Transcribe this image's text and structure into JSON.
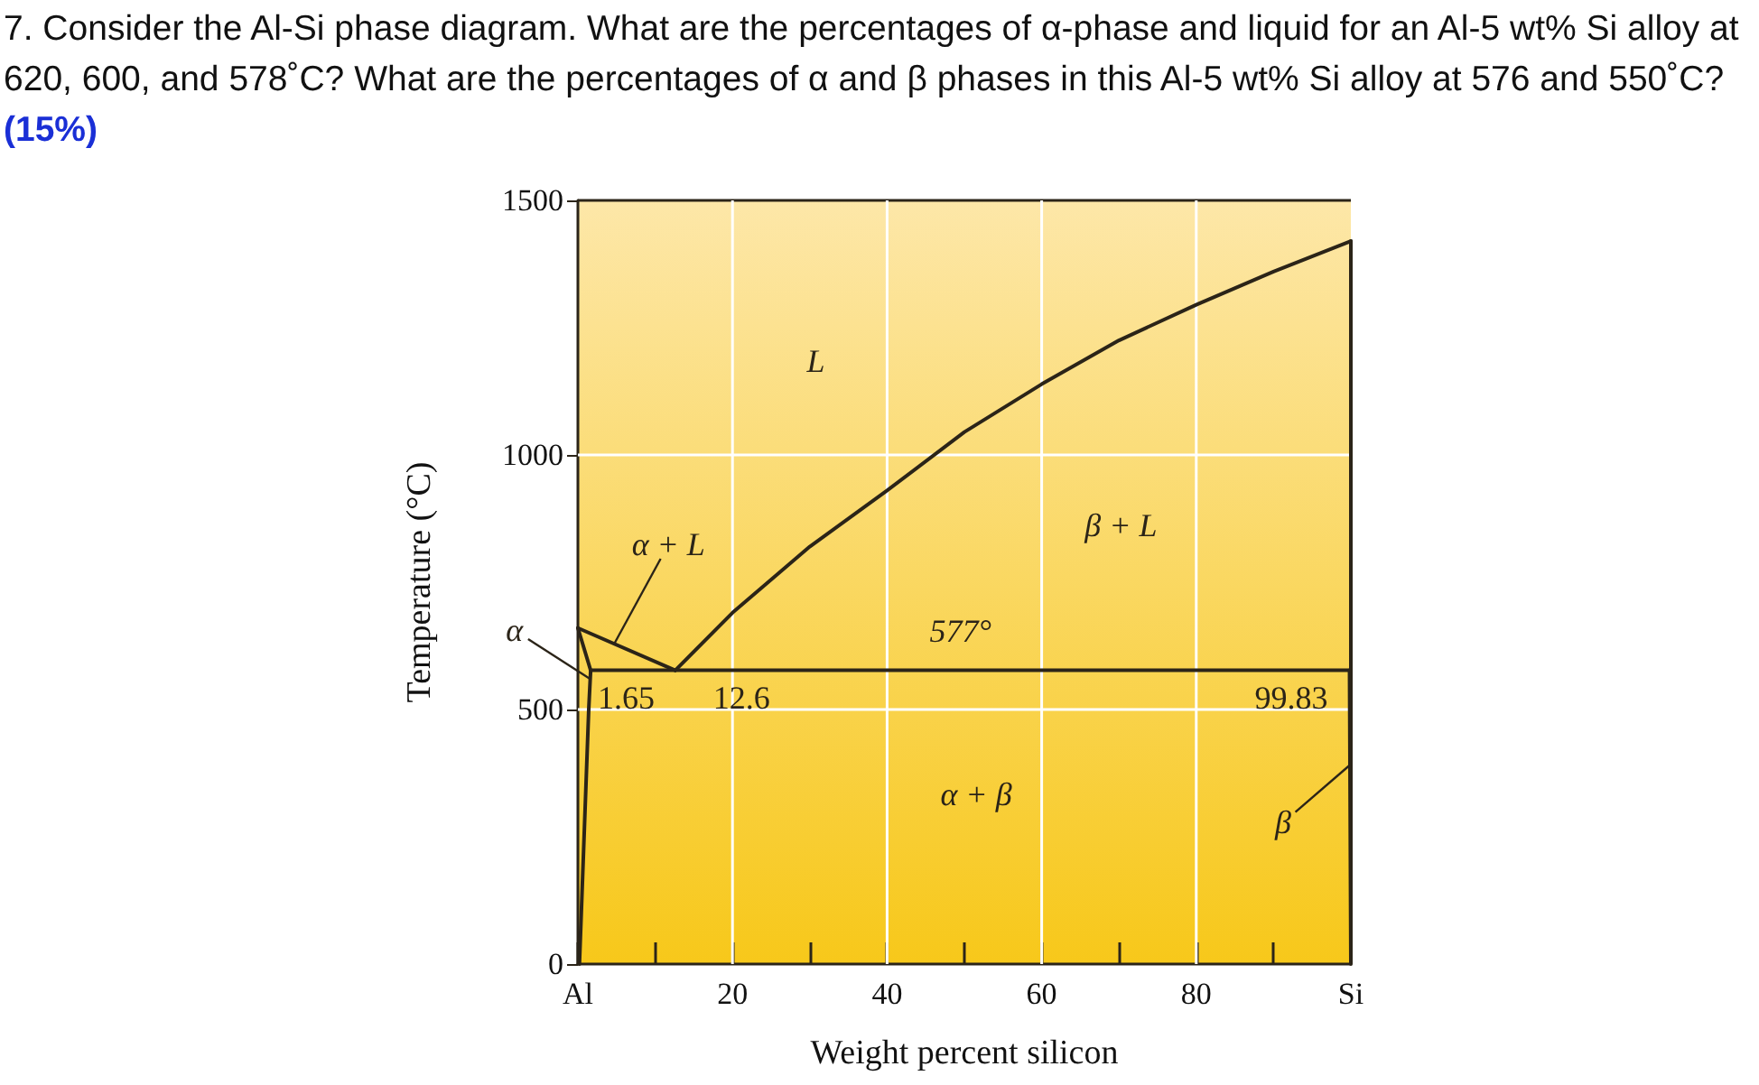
{
  "chart_data": {
    "type": "line",
    "title": "7. Consider the Al-Si phase diagram. What are the percentages of α-phase and liquid for an Al-5 wt% Si alloy at 620, 600, and 578˚C? What are the percentages of α and β phases in this Al-5 wt% Si alloy at 576 and 550˚C?",
    "subtitle": "(15%)",
    "xlabel": "Weight percent silicon",
    "ylabel": "Temperature (°C)",
    "xlim": [
      0,
      100
    ],
    "ylim": [
      0,
      1500
    ],
    "xticks": [
      {
        "value": 0,
        "label": "Al"
      },
      {
        "value": 10,
        "label": null
      },
      20,
      {
        "value": 30,
        "label": null
      },
      40,
      {
        "value": 50,
        "label": null
      },
      60,
      {
        "value": 70,
        "label": null
      },
      80,
      {
        "value": 90,
        "label": null
      },
      {
        "value": 100,
        "label": "Si"
      }
    ],
    "yticks": [
      0,
      500,
      1000,
      1500
    ],
    "grid": true,
    "marker": "none",
    "line_style": "solid",
    "series": [
      {
        "color": "#2b2418",
        "x": [
          12.6,
          20,
          30,
          40,
          50,
          60,
          70,
          80,
          90,
          100
        ],
        "values": [
          577,
          690,
          820,
          930,
          1045,
          1139,
          1225,
          1295,
          1360,
          1420
        ]
      },
      {
        "color": "#2b2418",
        "x": [
          0,
          12.6
        ],
        "values": [
          660,
          577
        ]
      },
      {
        "color": "#2b2418",
        "x": [
          0,
          1.65,
          1.4,
          0.2
        ],
        "values": [
          660,
          577,
          500,
          0
        ]
      },
      {
        "color": "#2b2418",
        "x": [
          1.65,
          99.83
        ],
        "values": [
          577,
          577
        ]
      },
      {
        "color": "#2b2418",
        "x": [
          100,
          100,
          99.83
        ],
        "values": [
          1420,
          0,
          577
        ]
      }
    ],
    "annotations": [
      "L",
      {
        "text": "α + L",
        "x": 4.7,
        "y": 629
      },
      "β + L",
      {
        "text": "577°",
        "x": 49.5,
        "y": 577
      },
      {
        "text": "α",
        "x": 1.6,
        "y": 560
      },
      {
        "text": "1.65",
        "x": 1.65,
        "y": 577
      },
      {
        "text": "12.6",
        "x": 12.6,
        "y": 577
      },
      {
        "text": "99.83",
        "x": 99.83,
        "y": 577
      },
      "α + β",
      {
        "text": "β",
        "x": 99.88,
        "y": 391
      }
    ]
  }
}
